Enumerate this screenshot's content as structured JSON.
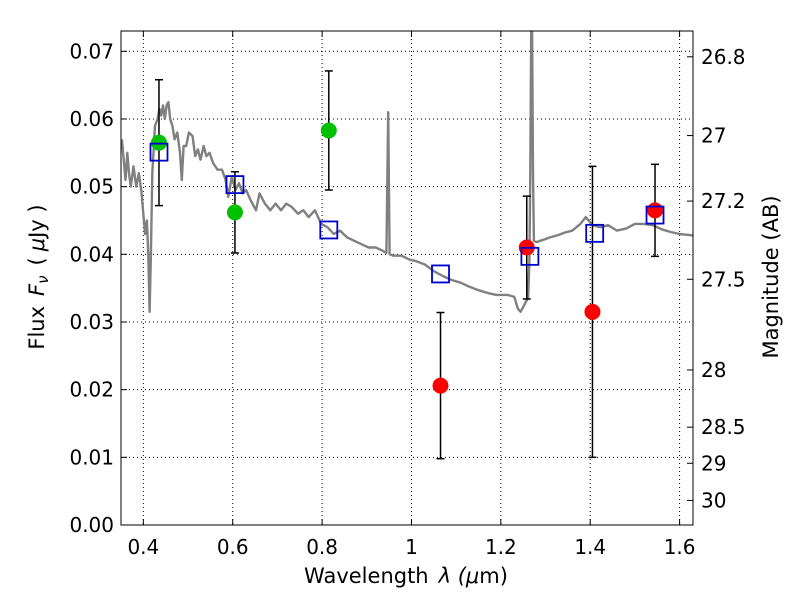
{
  "chart_data": {
    "type": "scatter",
    "title": "",
    "xlabel": "Wavelength",
    "xlabel_symbol": "λ (",
    "xlabel_unit_symbol": "μ",
    "xlabel_unit": "m)",
    "ylabel": "Flux",
    "ylabel_symbol": "F",
    "ylabel_symbol_sub": "ν",
    "ylabel_unit_open": "(",
    "ylabel_unit_symbol": "μ",
    "ylabel_unit": "Jy )",
    "y2label": "Magnitude (AB)",
    "xlim": [
      0.35,
      1.63
    ],
    "ylim": [
      0.0,
      0.073
    ],
    "grid": true,
    "x_ticks": [
      {
        "value": 0.4,
        "label": "0.4"
      },
      {
        "value": 0.6,
        "label": "0.6"
      },
      {
        "value": 0.8,
        "label": "0.8"
      },
      {
        "value": 1.0,
        "label": "1"
      },
      {
        "value": 1.2,
        "label": "1.2"
      },
      {
        "value": 1.4,
        "label": "1.4"
      },
      {
        "value": 1.6,
        "label": "1.6"
      }
    ],
    "y_ticks": [
      {
        "value": 0.0,
        "label": "0.00"
      },
      {
        "value": 0.01,
        "label": "0.01"
      },
      {
        "value": 0.02,
        "label": "0.02"
      },
      {
        "value": 0.03,
        "label": "0.03"
      },
      {
        "value": 0.04,
        "label": "0.04"
      },
      {
        "value": 0.05,
        "label": "0.05"
      },
      {
        "value": 0.06,
        "label": "0.06"
      },
      {
        "value": 0.07,
        "label": "0.07"
      }
    ],
    "y2_ticks": [
      {
        "mag": 26.8,
        "label": "26.8"
      },
      {
        "mag": 27.0,
        "label": "27"
      },
      {
        "mag": 27.2,
        "label": "27.2"
      },
      {
        "mag": 27.5,
        "label": "27.5"
      },
      {
        "mag": 28.0,
        "label": "28"
      },
      {
        "mag": 28.5,
        "label": "28.5"
      },
      {
        "mag": 29.0,
        "label": "29"
      },
      {
        "mag": 30.0,
        "label": "30"
      }
    ],
    "model_spectrum": {
      "color": "#808080",
      "points": [
        [
          0.352,
          0.057
        ],
        [
          0.356,
          0.054
        ],
        [
          0.36,
          0.051
        ],
        [
          0.364,
          0.055
        ],
        [
          0.368,
          0.052
        ],
        [
          0.372,
          0.05
        ],
        [
          0.378,
          0.053
        ],
        [
          0.384,
          0.05
        ],
        [
          0.39,
          0.052
        ],
        [
          0.396,
          0.049
        ],
        [
          0.4,
          0.046
        ],
        [
          0.404,
          0.043
        ],
        [
          0.408,
          0.045
        ],
        [
          0.411,
          0.04
        ],
        [
          0.414,
          0.0315
        ],
        [
          0.417,
          0.04
        ],
        [
          0.42,
          0.052
        ],
        [
          0.426,
          0.059
        ],
        [
          0.432,
          0.06
        ],
        [
          0.436,
          0.0615
        ],
        [
          0.44,
          0.0605
        ],
        [
          0.444,
          0.062
        ],
        [
          0.448,
          0.06
        ],
        [
          0.452,
          0.062
        ],
        [
          0.456,
          0.0625
        ],
        [
          0.46,
          0.06
        ],
        [
          0.465,
          0.059
        ],
        [
          0.47,
          0.057
        ],
        [
          0.476,
          0.058
        ],
        [
          0.482,
          0.055
        ],
        [
          0.486,
          0.051
        ],
        [
          0.49,
          0.056
        ],
        [
          0.496,
          0.056
        ],
        [
          0.502,
          0.058
        ],
        [
          0.51,
          0.0575
        ],
        [
          0.516,
          0.0545
        ],
        [
          0.522,
          0.0555
        ],
        [
          0.528,
          0.054
        ],
        [
          0.535,
          0.056
        ],
        [
          0.541,
          0.0545
        ],
        [
          0.548,
          0.055
        ],
        [
          0.556,
          0.0535
        ],
        [
          0.566,
          0.0525
        ],
        [
          0.576,
          0.0525
        ],
        [
          0.584,
          0.051
        ],
        [
          0.59,
          0.0485
        ],
        [
          0.598,
          0.0515
        ],
        [
          0.606,
          0.0495
        ],
        [
          0.614,
          0.0505
        ],
        [
          0.622,
          0.049
        ],
        [
          0.63,
          0.0495
        ],
        [
          0.64,
          0.048
        ],
        [
          0.652,
          0.0465
        ],
        [
          0.66,
          0.049
        ],
        [
          0.672,
          0.0475
        ],
        [
          0.684,
          0.0465
        ],
        [
          0.696,
          0.0475
        ],
        [
          0.708,
          0.0465
        ],
        [
          0.72,
          0.0475
        ],
        [
          0.732,
          0.047
        ],
        [
          0.746,
          0.046
        ],
        [
          0.758,
          0.0465
        ],
        [
          0.77,
          0.0455
        ],
        [
          0.784,
          0.0465
        ],
        [
          0.798,
          0.0445
        ],
        [
          0.812,
          0.044
        ],
        [
          0.826,
          0.043
        ],
        [
          0.84,
          0.0435
        ],
        [
          0.856,
          0.0425
        ],
        [
          0.872,
          0.042
        ],
        [
          0.888,
          0.0415
        ],
        [
          0.904,
          0.041
        ],
        [
          0.92,
          0.041
        ],
        [
          0.936,
          0.0405
        ],
        [
          0.944,
          0.0402
        ],
        [
          0.948,
          0.061
        ],
        [
          0.951,
          0.04
        ],
        [
          0.96,
          0.0398
        ],
        [
          0.978,
          0.0398
        ],
        [
          0.996,
          0.0392
        ],
        [
          1.01,
          0.039
        ],
        [
          1.03,
          0.0385
        ],
        [
          1.05,
          0.0375
        ],
        [
          1.07,
          0.0368
        ],
        [
          1.09,
          0.0362
        ],
        [
          1.11,
          0.0358
        ],
        [
          1.13,
          0.0352
        ],
        [
          1.15,
          0.0347
        ],
        [
          1.17,
          0.0343
        ],
        [
          1.19,
          0.034
        ],
        [
          1.215,
          0.034
        ],
        [
          1.23,
          0.0337
        ],
        [
          1.238,
          0.032
        ],
        [
          1.244,
          0.0315
        ],
        [
          1.25,
          0.0322
        ],
        [
          1.256,
          0.033
        ],
        [
          1.261,
          0.0335
        ],
        [
          1.264,
          0.039
        ],
        [
          1.266,
          0.052
        ],
        [
          1.268,
          0.073
        ],
        [
          1.27,
          0.073
        ],
        [
          1.272,
          0.052
        ],
        [
          1.274,
          0.042
        ],
        [
          1.28,
          0.0418
        ],
        [
          1.288,
          0.042
        ],
        [
          1.298,
          0.0422
        ],
        [
          1.31,
          0.0425
        ],
        [
          1.326,
          0.0428
        ],
        [
          1.342,
          0.0432
        ],
        [
          1.36,
          0.0435
        ],
        [
          1.378,
          0.0445
        ],
        [
          1.39,
          0.0455
        ],
        [
          1.405,
          0.0443
        ],
        [
          1.422,
          0.044
        ],
        [
          1.44,
          0.0443
        ],
        [
          1.46,
          0.0435
        ],
        [
          1.48,
          0.0438
        ],
        [
          1.5,
          0.0445
        ],
        [
          1.52,
          0.0445
        ],
        [
          1.54,
          0.0443
        ],
        [
          1.56,
          0.0437
        ],
        [
          1.58,
          0.0433
        ],
        [
          1.6,
          0.043
        ],
        [
          1.63,
          0.0428
        ]
      ]
    },
    "series": [
      {
        "marker": "circle",
        "color": "#00c000",
        "points": [
          {
            "x": 0.435,
            "y": 0.0565,
            "err": 0.0093
          },
          {
            "x": 0.605,
            "y": 0.0462,
            "err": 0.006
          },
          {
            "x": 0.815,
            "y": 0.0583,
            "err": 0.0088
          }
        ]
      },
      {
        "marker": "circle",
        "color": "#ff0000",
        "points": [
          {
            "x": 1.065,
            "y": 0.0206,
            "err": 0.0108
          },
          {
            "x": 1.258,
            "y": 0.041,
            "err": 0.0076
          },
          {
            "x": 1.405,
            "y": 0.0315,
            "err": 0.0215
          },
          {
            "x": 1.545,
            "y": 0.0465,
            "err": 0.0068
          }
        ]
      },
      {
        "marker": "open-square",
        "color": "#0000cc",
        "points": [
          {
            "x": 0.435,
            "y": 0.0551
          },
          {
            "x": 0.605,
            "y": 0.0503
          },
          {
            "x": 0.815,
            "y": 0.0436
          },
          {
            "x": 1.065,
            "y": 0.0371
          },
          {
            "x": 1.265,
            "y": 0.0397
          },
          {
            "x": 1.41,
            "y": 0.0431
          },
          {
            "x": 1.545,
            "y": 0.0458
          }
        ]
      }
    ]
  }
}
